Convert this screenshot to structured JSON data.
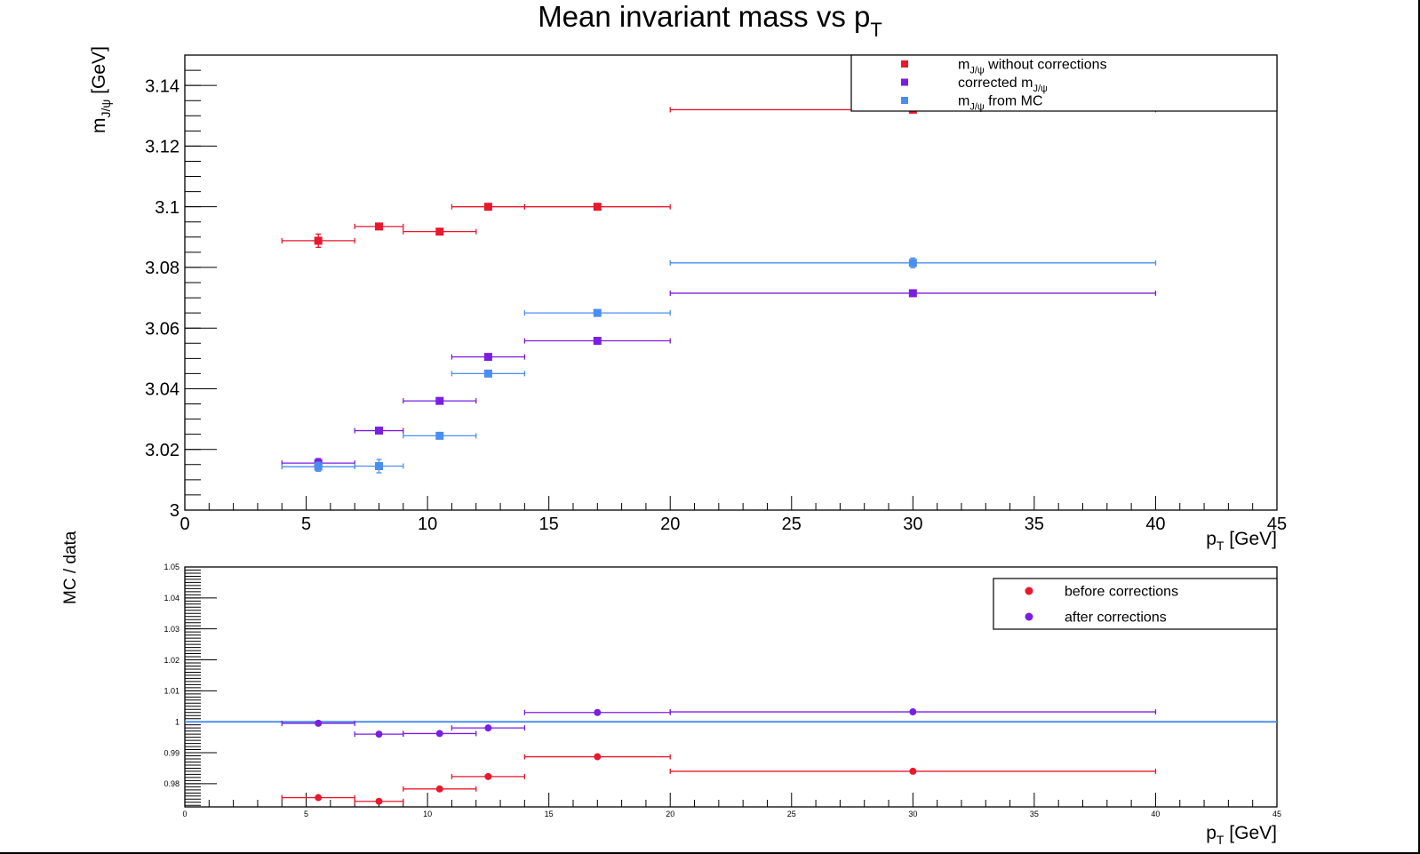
{
  "title": {
    "main": "Mean invariant mass vs p",
    "sub": "T"
  },
  "colors": {
    "red": "#e8192c",
    "purple": "#7a1fe0",
    "blue": "#4a8ef0",
    "line": "#4a8ef0",
    "axis": "#000000"
  },
  "chart_data": [
    {
      "type": "scatter",
      "name": "top",
      "xlabel": {
        "main": "p",
        "sub": "T",
        "rest": " [GeV]"
      },
      "ylabel": {
        "main": "m",
        "sub": "J/ψ",
        "rest": " [GeV]"
      },
      "xlim": [
        0,
        45
      ],
      "ylim": [
        3.0,
        3.15
      ],
      "xticks": [
        "0",
        "5",
        "10",
        "15",
        "20",
        "25",
        "30",
        "35",
        "40",
        "45"
      ],
      "yticks": [
        "3",
        "3.02",
        "3.04",
        "3.06",
        "3.08",
        "3.1",
        "3.12",
        "3.14"
      ],
      "legend": {
        "placement": "top-right",
        "entries": [
          {
            "main": "m",
            "sub": "J/ψ",
            "rest": " without corrections",
            "series": 0
          },
          {
            "main": "corrected m",
            "sub": "J/ψ",
            "rest": "",
            "series": 1
          },
          {
            "main": "m",
            "sub": "J/ψ",
            "rest": " from MC",
            "series": 2
          }
        ]
      },
      "series": [
        {
          "marker": "square",
          "color": "#e8192c",
          "points": [
            {
              "x": 5.5,
              "xlo": 4,
              "xhi": 7,
              "y": 3.0888,
              "ey": 0.0022
            },
            {
              "x": 8,
              "xlo": 7,
              "xhi": 9,
              "y": 3.0935,
              "ey": 0.0006
            },
            {
              "x": 10.5,
              "xlo": 9,
              "xhi": 12,
              "y": 3.0918,
              "ey": 0.0006
            },
            {
              "x": 12.5,
              "xlo": 11,
              "xhi": 14,
              "y": 3.1,
              "ey": 0.0005
            },
            {
              "x": 17,
              "xlo": 14,
              "xhi": 20,
              "y": 3.1,
              "ey": 0.0005
            },
            {
              "x": 30,
              "xlo": 20,
              "xhi": 40,
              "y": 3.132,
              "ey": 0.0007
            }
          ]
        },
        {
          "marker": "square",
          "color": "#7a1fe0",
          "points": [
            {
              "x": 5.5,
              "xlo": 4,
              "xhi": 7,
              "y": 3.0155,
              "ey": 0.0015
            },
            {
              "x": 8,
              "xlo": 7,
              "xhi": 9,
              "y": 3.0262,
              "ey": 0.0005
            },
            {
              "x": 10.5,
              "xlo": 9,
              "xhi": 12,
              "y": 3.036,
              "ey": 0.0005
            },
            {
              "x": 12.5,
              "xlo": 11,
              "xhi": 14,
              "y": 3.0505,
              "ey": 0.0005
            },
            {
              "x": 17,
              "xlo": 14,
              "xhi": 20,
              "y": 3.0558,
              "ey": 0.0005
            },
            {
              "x": 30,
              "xlo": 20,
              "xhi": 40,
              "y": 3.0715,
              "ey": 0.0007
            }
          ]
        },
        {
          "marker": "square",
          "color": "#4a8ef0",
          "points": [
            {
              "x": 5.5,
              "xlo": 4,
              "xhi": 7,
              "y": 3.0143,
              "ey": 0.0015
            },
            {
              "x": 8,
              "xlo": 7,
              "xhi": 9,
              "y": 3.0145,
              "ey": 0.0022
            },
            {
              "x": 10.5,
              "xlo": 9,
              "xhi": 12,
              "y": 3.0245,
              "ey": 0.0006
            },
            {
              "x": 12.5,
              "xlo": 11,
              "xhi": 14,
              "y": 3.045,
              "ey": 0.0005
            },
            {
              "x": 17,
              "xlo": 14,
              "xhi": 20,
              "y": 3.065,
              "ey": 0.0005
            },
            {
              "x": 30,
              "xlo": 20,
              "xhi": 40,
              "y": 3.0815,
              "ey": 0.0016
            }
          ]
        }
      ]
    },
    {
      "type": "scatter",
      "name": "ratio",
      "xlabel": {
        "main": "p",
        "sub": "T",
        "rest": " [GeV]"
      },
      "ylabel": {
        "main": "MC / data",
        "sub": "",
        "rest": ""
      },
      "xlim": [
        0,
        45
      ],
      "ylim": [
        0.9725,
        1.05
      ],
      "xticks": [
        "0",
        "5",
        "10",
        "15",
        "20",
        "25",
        "30",
        "35",
        "40",
        "45"
      ],
      "yticks": [
        "0.98",
        "0.99",
        "1",
        "1.01",
        "1.02",
        "1.03",
        "1.04",
        "1.05"
      ],
      "reference_line": 1.0,
      "legend": {
        "placement": "top-right",
        "entries": [
          {
            "main": "before corrections",
            "sub": "",
            "rest": "",
            "series": 0
          },
          {
            "main": "after corrections",
            "sub": "",
            "rest": "",
            "series": 1
          }
        ]
      },
      "series": [
        {
          "marker": "circle",
          "color": "#e8192c",
          "points": [
            {
              "x": 5.5,
              "xlo": 4,
              "xhi": 7,
              "y": 0.9755
            },
            {
              "x": 8,
              "xlo": 7,
              "xhi": 9,
              "y": 0.9743
            },
            {
              "x": 10.5,
              "xlo": 9,
              "xhi": 12,
              "y": 0.9783
            },
            {
              "x": 12.5,
              "xlo": 11,
              "xhi": 14,
              "y": 0.9823
            },
            {
              "x": 17,
              "xlo": 14,
              "xhi": 20,
              "y": 0.9887
            },
            {
              "x": 30,
              "xlo": 20,
              "xhi": 40,
              "y": 0.984
            }
          ]
        },
        {
          "marker": "circle",
          "color": "#7a1fe0",
          "points": [
            {
              "x": 5.5,
              "xlo": 4,
              "xhi": 7,
              "y": 0.9995
            },
            {
              "x": 8,
              "xlo": 7,
              "xhi": 9,
              "y": 0.996
            },
            {
              "x": 10.5,
              "xlo": 9,
              "xhi": 12,
              "y": 0.9962
            },
            {
              "x": 12.5,
              "xlo": 11,
              "xhi": 14,
              "y": 0.998
            },
            {
              "x": 17,
              "xlo": 14,
              "xhi": 20,
              "y": 1.003
            },
            {
              "x": 30,
              "xlo": 20,
              "xhi": 40,
              "y": 1.0032
            }
          ]
        }
      ]
    }
  ]
}
